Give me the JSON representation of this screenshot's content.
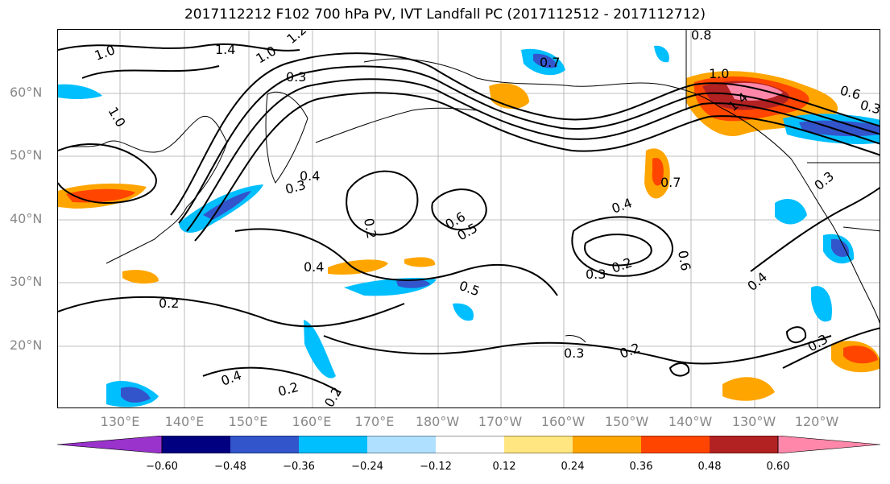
{
  "title": "2017112212 F102 700 hPa PV, IVT Landfall PC (2017112512 - 2017112712)",
  "lat_labels": [
    "60°N",
    "50°N",
    "40°N",
    "30°N",
    "20°N"
  ],
  "lon_labels": [
    "130°E",
    "140°E",
    "150°E",
    "160°E",
    "170°E",
    "180°W",
    "170°W",
    "160°W",
    "150°W",
    "140°W",
    "130°W",
    "120°W"
  ],
  "contour_labels": [
    "1.0",
    "1.4",
    "1.0",
    "1.2",
    "1.0",
    "0.3",
    "0.4",
    "0.3",
    "0.2",
    "0.6",
    "0.5",
    "0.4",
    "0.7",
    "0.6",
    "0.3",
    "0.2",
    "0.5",
    "0.4",
    "0.2",
    "0.4",
    "0.2",
    "0.3",
    "0.2",
    "0.3",
    "0.4",
    "0.3",
    "1.0",
    "1.4",
    "0.8",
    "0.7",
    "0.6",
    "0.3",
    "0.2"
  ],
  "colorbar": {
    "labels": [
      "−0.60",
      "−0.48",
      "−0.36",
      "−0.24",
      "−0.12",
      "0.12",
      "0.24",
      "0.36",
      "0.48",
      "0.60"
    ],
    "colors": [
      "#9933cc",
      "#000080",
      "#3355cc",
      "#00bfff",
      "#b0e0ff",
      "#ffffff",
      "#ffe680",
      "#ffa500",
      "#ff4500",
      "#b22222",
      "#ff88aa"
    ]
  },
  "colors": {
    "neg_light": "#b0e0ff",
    "neg_mid": "#00bfff",
    "neg_strong": "#3355cc",
    "pos_light": "#ffe680",
    "pos_mid": "#ffa500",
    "pos_strong": "#ff4500",
    "pos_darkred": "#b22222",
    "pos_pink": "#ff88aa"
  }
}
